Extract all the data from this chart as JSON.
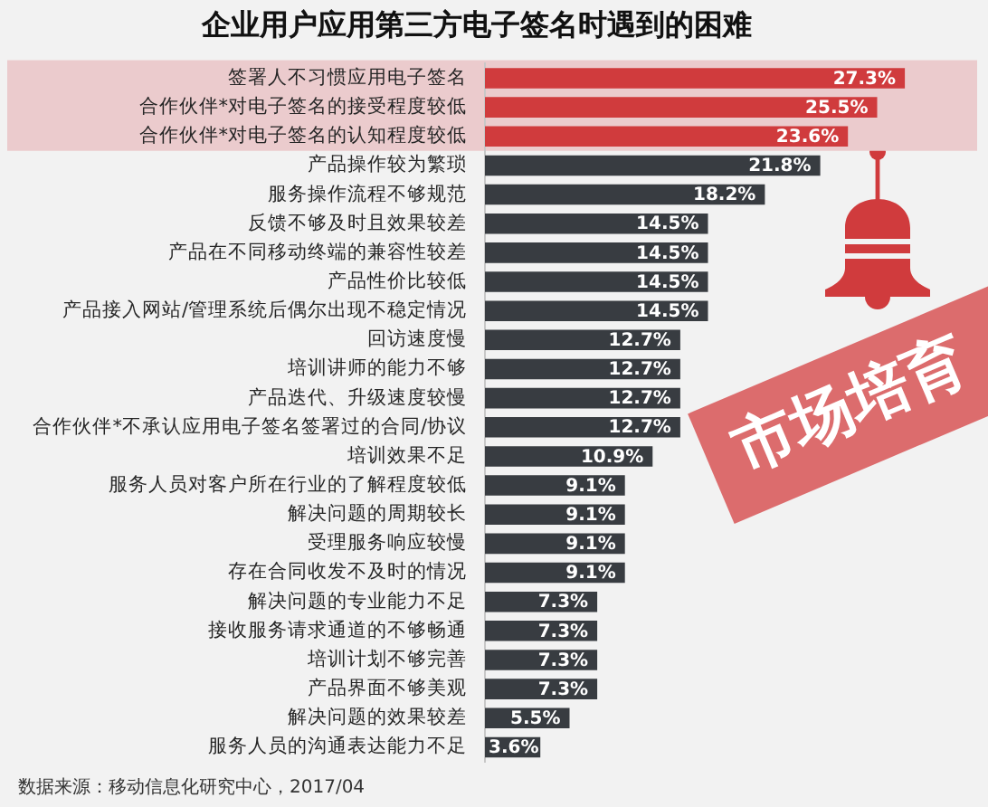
{
  "chart_data": {
    "type": "bar",
    "orientation": "horizontal",
    "title": "企业用户应用第三方电子签名时遇到的困难",
    "categories": [
      "签署人不习惯应用电子签名",
      "合作伙伴*对电子签名的接受程度较低",
      "合作伙伴*对电子签名的认知程度较低",
      "产品操作较为繁琐",
      "服务操作流程不够规范",
      "反馈不够及时且效果较差",
      "产品在不同移动终端的兼容性较差",
      "产品性价比较低",
      "产品接入网站/管理系统后偶尔出现不稳定情况",
      "回访速度慢",
      "培训讲师的能力不够",
      "产品迭代、升级速度较慢",
      "合作伙伴*不承认应用电子签名签署过的合同/协议",
      "培训效果不足",
      "服务人员对客户所在行业的了解程度较低",
      "解决问题的周期较长",
      "受理服务响应较慢",
      "存在合同收发不及时的情况",
      "解决问题的专业能力不足",
      "接收服务请求通道的不够畅通",
      "培训计划不够完善",
      "产品界面不够美观",
      "解决问题的效果较差",
      "服务人员的沟通表达能力不足"
    ],
    "values": [
      27.3,
      25.5,
      23.6,
      21.8,
      18.2,
      14.5,
      14.5,
      14.5,
      14.5,
      12.7,
      12.7,
      12.7,
      12.7,
      10.9,
      9.1,
      9.1,
      9.1,
      9.1,
      7.3,
      7.3,
      7.3,
      7.3,
      5.5,
      3.6
    ],
    "colors": [
      "#d03b3d",
      "#d03b3d",
      "#d03b3d",
      "#383c41",
      "#383c41",
      "#383c41",
      "#383c41",
      "#383c41",
      "#383c41",
      "#383c41",
      "#383c41",
      "#383c41",
      "#383c41",
      "#383c41",
      "#383c41",
      "#383c41",
      "#383c41",
      "#383c41",
      "#383c41",
      "#383c41",
      "#383c41",
      "#383c41",
      "#383c41",
      "#383c41"
    ],
    "value_labels": [
      "27.3%",
      "25.5%",
      "23.6%",
      "21.8%",
      "18.2%",
      "14.5%",
      "14.5%",
      "14.5%",
      "14.5%",
      "12.7%",
      "12.7%",
      "12.7%",
      "12.7%",
      "10.9%",
      "9.1%",
      "9.1%",
      "9.1%",
      "9.1%",
      "7.3%",
      "7.3%",
      "7.3%",
      "7.3%",
      "5.5%",
      "3.6%"
    ],
    "tick_labels": "y",
    "grid": false,
    "legend": false,
    "bands": [
      {
        "axis": "y",
        "from": "签署人不习惯应用电子签名",
        "to": "合作伙伴*对电子签名的认知程度较低",
        "color": "#ebcbcd"
      }
    ],
    "annotations": [
      "市场培育",
      "数据来源：移动信息化研究中心，2017/04"
    ]
  }
}
